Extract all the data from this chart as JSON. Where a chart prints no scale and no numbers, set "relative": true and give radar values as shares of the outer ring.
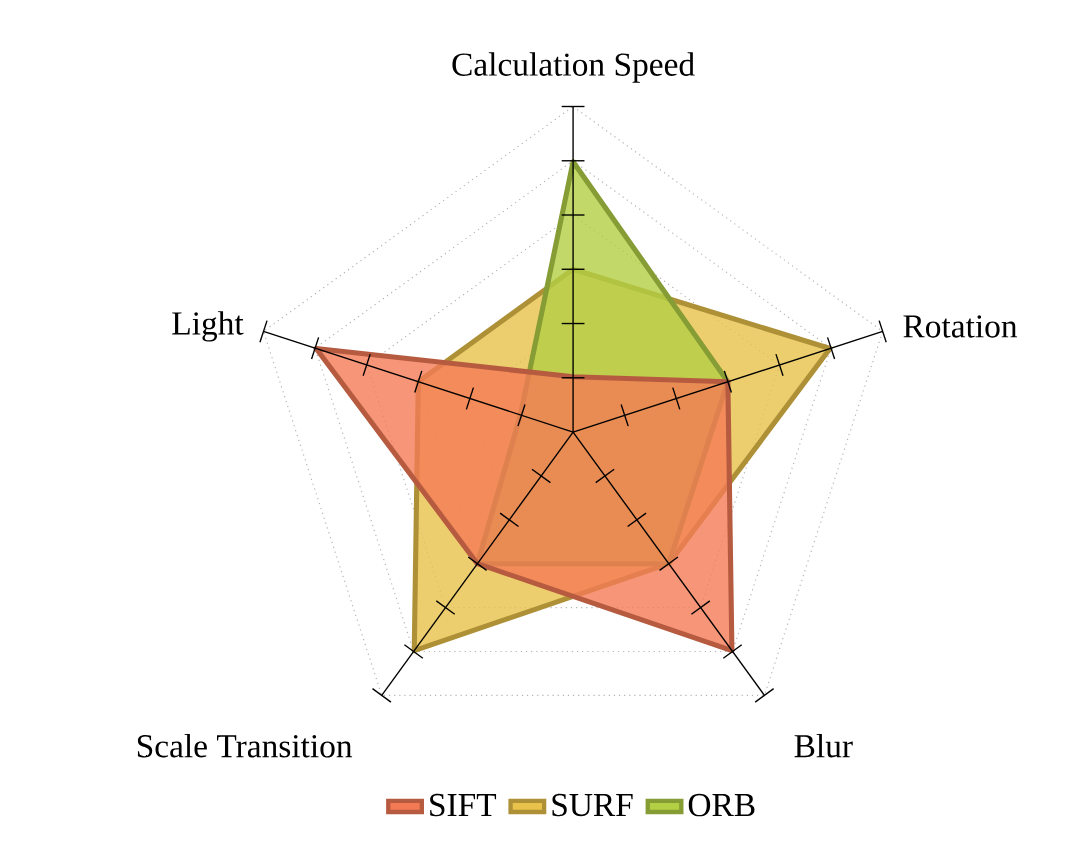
{
  "chart_data": {
    "type": "radar",
    "relative": true,
    "grid": true,
    "legend": "bottom",
    "categories": [
      "Calculation Speed",
      "Rotation",
      "Blur",
      "Scale Transition",
      "Light"
    ],
    "series": [
      {
        "name": "SIFT",
        "color": "#f47a55",
        "values": [
          0.17,
          0.5,
          0.83,
          0.5,
          0.83
        ]
      },
      {
        "name": "SURF",
        "color": "#e8c24a",
        "values": [
          0.5,
          0.83,
          0.5,
          0.83,
          0.5
        ]
      },
      {
        "name": "ORB",
        "color": "#b3d045",
        "values": [
          0.83,
          0.5,
          0.5,
          0.5,
          0.17
        ]
      }
    ]
  }
}
